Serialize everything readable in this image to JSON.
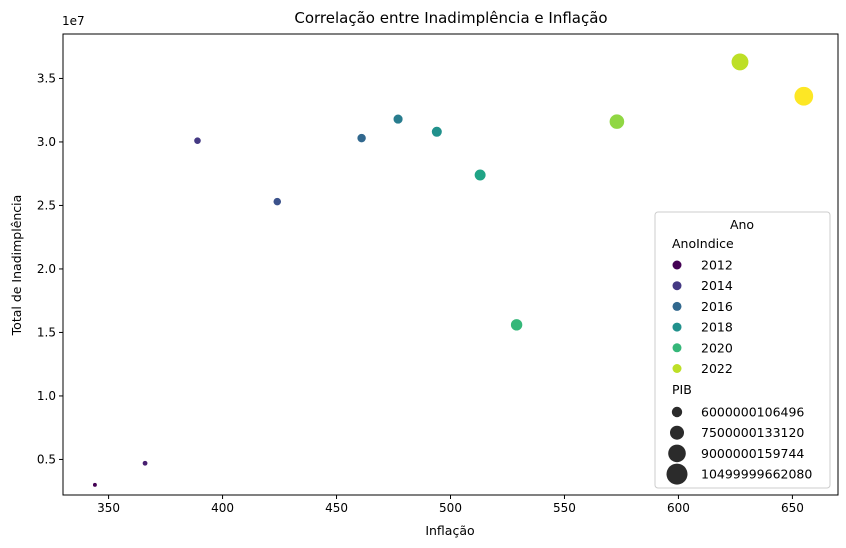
{
  "chart_data": {
    "type": "scatter",
    "title": "Correlação entre Inadimplência e Inflação",
    "xlabel": "Inflação",
    "ylabel": "Total de Inadimplência",
    "y_offset_label": "1e7",
    "xlim": [
      330,
      670
    ],
    "ylim": [
      0.22,
      3.85
    ],
    "x_ticks": [
      350,
      400,
      450,
      500,
      550,
      600,
      650
    ],
    "y_ticks": [
      0.5,
      1.0,
      1.5,
      2.0,
      2.5,
      3.0,
      3.5
    ],
    "grid": false,
    "legend_placement": "lower-right",
    "legend": {
      "title": "Ano",
      "hue_title": "AnoIndice",
      "hue_entries": [
        {
          "label": "2012",
          "color": "#440154"
        },
        {
          "label": "2014",
          "color": "#443983"
        },
        {
          "label": "2016",
          "color": "#31688e"
        },
        {
          "label": "2018",
          "color": "#21918c"
        },
        {
          "label": "2020",
          "color": "#35b779"
        },
        {
          "label": "2022",
          "color": "#bddf26"
        }
      ],
      "size_title": "PIB",
      "size_entries": [
        {
          "label": "6000000106496",
          "size": 6000000106496
        },
        {
          "label": "7500000133120",
          "size": 7500000133120
        },
        {
          "label": "9000000159744",
          "size": 9000000159744
        },
        {
          "label": "10499999662080",
          "size": 10499999662080
        }
      ]
    },
    "points": [
      {
        "year": 2012,
        "x": 344,
        "y": 0.3,
        "size": 4300000000000,
        "color": "#440154"
      },
      {
        "year": 2013,
        "x": 366,
        "y": 0.47,
        "size": 4700000000000,
        "color": "#481f70"
      },
      {
        "year": 2014,
        "x": 389,
        "y": 3.01,
        "size": 5500000000000,
        "color": "#443983"
      },
      {
        "year": 2015,
        "x": 424,
        "y": 2.53,
        "size": 5900000000000,
        "color": "#3b528b"
      },
      {
        "year": 2016,
        "x": 461,
        "y": 3.03,
        "size": 6300000000000,
        "color": "#31688e"
      },
      {
        "year": 2017,
        "x": 477,
        "y": 3.18,
        "size": 6600000000000,
        "color": "#287c8e"
      },
      {
        "year": 2018,
        "x": 494,
        "y": 3.08,
        "size": 7000000000000,
        "color": "#21918c"
      },
      {
        "year": 2019,
        "x": 513,
        "y": 2.74,
        "size": 7400000000000,
        "color": "#20a486"
      },
      {
        "year": 2020,
        "x": 529,
        "y": 1.56,
        "size": 7600000000000,
        "color": "#35b779"
      },
      {
        "year": 2021,
        "x": 573,
        "y": 3.16,
        "size": 9000000000000,
        "color": "#90d743"
      },
      {
        "year": 2022,
        "x": 627,
        "y": 3.63,
        "size": 10000000000000,
        "color": "#bddf26"
      },
      {
        "year": 2023,
        "x": 655,
        "y": 3.36,
        "size": 10800000000000,
        "color": "#fde725"
      }
    ]
  }
}
